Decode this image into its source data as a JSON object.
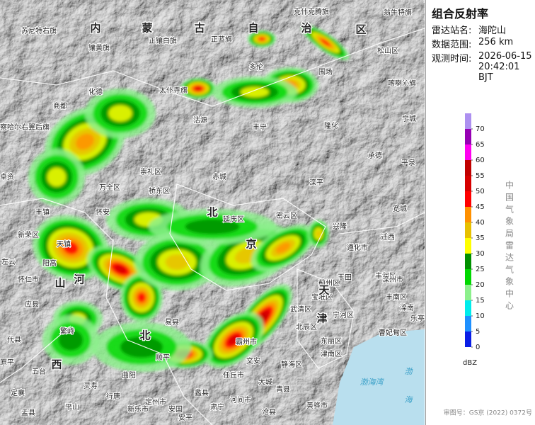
{
  "panel": {
    "title": "组合反射率",
    "fields": [
      {
        "label": "雷达站名:",
        "value": "海陀山"
      },
      {
        "label": "数据范围:",
        "value": "256 km"
      },
      {
        "label": "观测时间:",
        "value": "2026-06-15 20:42:01 BJT"
      }
    ]
  },
  "legend": {
    "ticks": [
      0,
      5,
      10,
      15,
      20,
      25,
      30,
      35,
      40,
      45,
      50,
      55,
      60,
      65,
      70
    ],
    "colors": [
      "#0a1ee6",
      "#1e90ff",
      "#00ecec",
      "#8cf08c",
      "#00d800",
      "#019000",
      "#ffff00",
      "#e7c000",
      "#ff9000",
      "#ff0000",
      "#d60000",
      "#c00000",
      "#ff00f0",
      "#9600b4",
      "#ad90f0"
    ],
    "unit": "dBZ"
  },
  "organization": "中国气象局雷达气象中心",
  "approval": "审图号：GS京 (2022) 0372号",
  "map": {
    "regions": [
      "内",
      "蒙",
      "古",
      "自",
      "治",
      "区",
      "河",
      "北",
      "天",
      "津",
      "山",
      "西",
      "京",
      "北"
    ],
    "seas": [
      "渤海湾",
      "渤",
      "海"
    ],
    "places": [
      "苏尼特右旗",
      "克什克腾旗",
      "翁牛特旗",
      "镶黄旗",
      "正镶白旗",
      "正蓝旗",
      "松山区",
      "多伦",
      "围场",
      "化德",
      "太仆寺旗",
      "喀喇沁旗",
      "商都",
      "察哈尔右翼后旗",
      "沽源",
      "丰宁",
      "隆化",
      "宁城",
      "承德",
      "平泉",
      "崇礼区",
      "赤城",
      "滦平",
      "兴隆",
      "宽城",
      "卓资",
      "万全区",
      "桥东区",
      "丰镇",
      "怀安",
      "延庆区",
      "密云区",
      "新荣区",
      "遵化市",
      "迁西",
      "天镇",
      "左云",
      "怀仁市",
      "阳高",
      "丰润区",
      "玉田",
      "蓟州区",
      "应县",
      "宝坻区",
      "宁河区",
      "滦州市",
      "丰南区",
      "滦南",
      "乐亭",
      "曹妃甸区",
      "武清区",
      "北辰区",
      "东丽区",
      "津南区",
      "代县",
      "原平",
      "繁峙",
      "五台",
      "定襄",
      "易县",
      "霸州市",
      "文安",
      "静海区",
      "大城",
      "青县",
      "黄骅市",
      "盂县",
      "平山",
      "灵寿",
      "行唐",
      "新乐市",
      "定州市",
      "安国",
      "安平",
      "蠡县",
      "肃宁",
      "河间市",
      "任丘市",
      "沧县",
      "曲阳",
      "顺平"
    ]
  }
}
